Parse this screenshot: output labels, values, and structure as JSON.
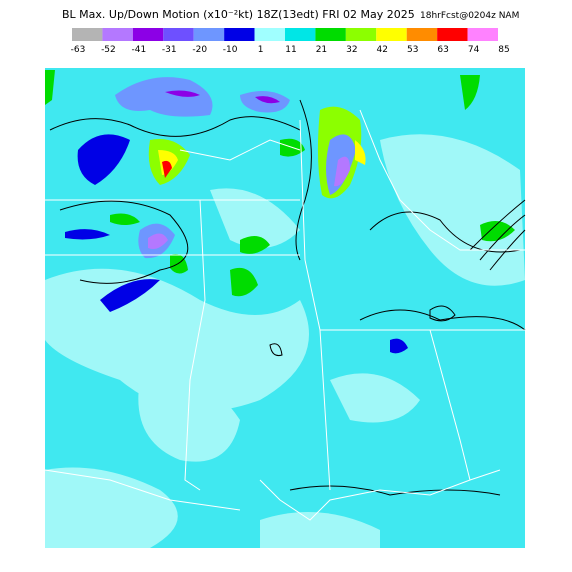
{
  "header": {
    "title": "BL Max. Up/Down Motion (x10⁻²kt) 18Z(13edt) FRI 02 May 2025",
    "subtitle": "18hrFcst@0204z NAM"
  },
  "colorbar": {
    "labels": [
      "-63",
      "-52",
      "-41",
      "-31",
      "-20",
      "-10",
      "1",
      "11",
      "21",
      "32",
      "42",
      "53",
      "63",
      "74",
      "85"
    ],
    "colors": [
      "#b4b4b4",
      "#b478ff",
      "#8c00e6",
      "#6e50ff",
      "#6e96ff",
      "#0000e6",
      "#a0ffff",
      "#00e6e6",
      "#00dc00",
      "#8cff00",
      "#ffff00",
      "#ff8c00",
      "#ff0000",
      "#ff82ff"
    ]
  }
}
